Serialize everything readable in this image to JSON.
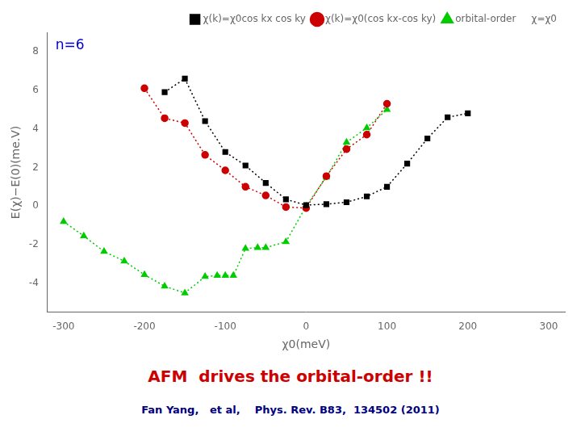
{
  "chart_data": {
    "type": "line",
    "xlabel": "χ0(meV)",
    "ylabel": "E(χ)−E(0)(me.V)",
    "xlim": [
      -320,
      320
    ],
    "ylim": [
      -5.5,
      9
    ],
    "xticks": [
      -300,
      -200,
      -100,
      0,
      100,
      200,
      300
    ],
    "yticks": [
      -4,
      -2,
      0,
      2,
      4,
      6,
      8
    ],
    "grid": false,
    "legend": "upper right",
    "annotations": [
      {
        "text": "n=6",
        "color": "#0000cc"
      },
      {
        "text": "AFM  drives the orbital-order !!",
        "color": "#cc0000"
      },
      {
        "text": "Fan Yang,   et al,    Phys. Rev. B83,  134502 (2011)",
        "color": "#000080"
      }
    ],
    "series": [
      {
        "name": "χ(k)=χ0cos kx cos ky",
        "color": "#000000",
        "marker": "square",
        "line_style": "dotted",
        "x": [
          -175,
          -150,
          -125,
          -100,
          -75,
          -50,
          -25,
          0,
          25,
          50,
          75,
          100,
          125,
          150,
          175,
          200
        ],
        "values": [
          5.9,
          6.6,
          4.4,
          2.8,
          2.1,
          1.2,
          0.35,
          0.05,
          0.1,
          0.2,
          0.5,
          1.0,
          2.2,
          3.5,
          4.6,
          4.8
        ]
      },
      {
        "name": "χ(k)=χ0(cos kx-cos ky)",
        "color": "#cc0000",
        "marker": "circle",
        "line_style": "dotted",
        "x": [
          -200,
          -175,
          -150,
          -125,
          -100,
          -75,
          -50,
          -25,
          0,
          25,
          50,
          75,
          100
        ],
        "values": [
          6.1,
          4.55,
          4.3,
          2.65,
          1.85,
          1.0,
          0.55,
          -0.05,
          -0.1,
          1.55,
          2.95,
          3.7,
          5.3
        ]
      },
      {
        "name": "orbital-order     χ=χ0",
        "color": "#00cc00",
        "marker": "triangle",
        "line_style": "dotted",
        "x": [
          -300,
          -275,
          -250,
          -225,
          -200,
          -175,
          -150,
          -125,
          -110,
          -100,
          -90,
          -75,
          -60,
          -50,
          -25,
          0,
          25,
          50,
          75,
          100
        ],
        "values": [
          -0.8,
          -1.55,
          -2.35,
          -2.85,
          -3.55,
          -4.15,
          -4.5,
          -3.65,
          -3.6,
          -3.6,
          -3.6,
          -2.2,
          -2.15,
          -2.15,
          -1.85,
          0.0,
          1.5,
          3.3,
          4.05,
          5.0
        ]
      }
    ]
  }
}
